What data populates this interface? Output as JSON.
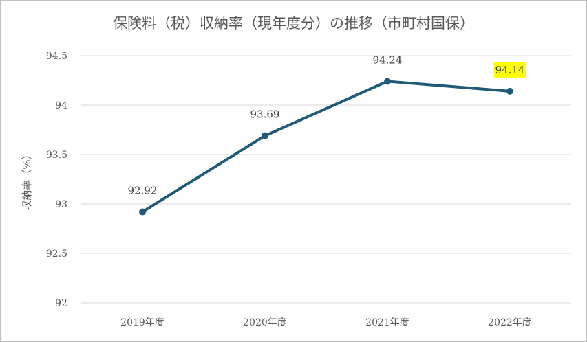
{
  "chart_data": {
    "type": "line",
    "title": "保険料（税）収納率（現年度分）の推移（市町村国保）",
    "xlabel": "",
    "ylabel": "収納率（%）",
    "categories": [
      "2019年度",
      "2020年度",
      "2021年度",
      "2022年度"
    ],
    "series": [
      {
        "values": [
          92.92,
          93.69,
          94.24,
          94.14
        ],
        "labels": [
          "92.92",
          "93.69",
          "94.24",
          "94.14"
        ]
      }
    ],
    "ylim": [
      92,
      94.5
    ],
    "yticks": [
      92,
      92.5,
      93,
      93.5,
      94,
      94.5
    ],
    "ytick_labels": [
      "92",
      "92.5",
      "93",
      "93.5",
      "94",
      "94.5"
    ],
    "grid": true,
    "legend": "none",
    "line_color": "#1f5a78",
    "grid_color": "#d9d9d9",
    "highlight": {
      "index": 3,
      "color": "#ffff00"
    }
  }
}
